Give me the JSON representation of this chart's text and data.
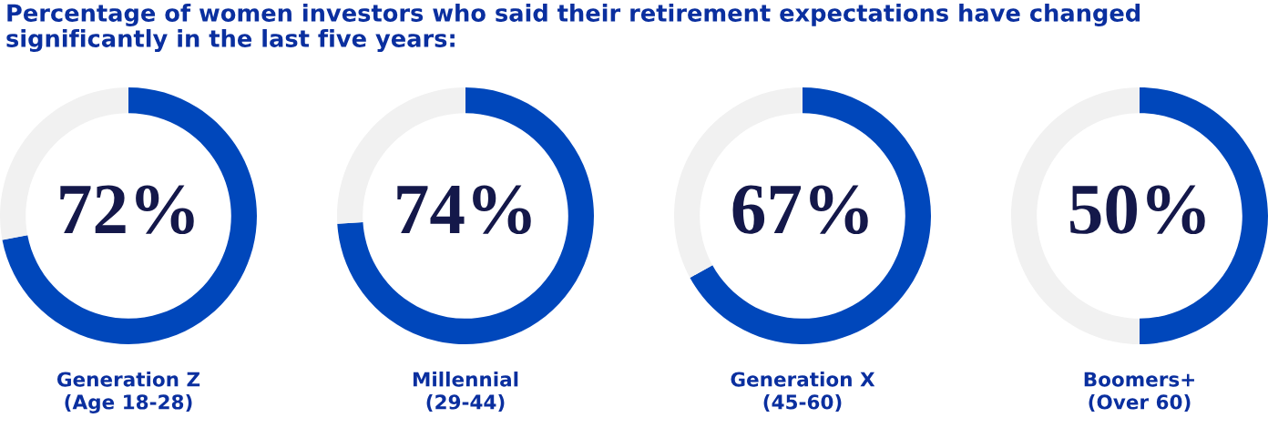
{
  "chart_data": [
    {
      "type": "donut",
      "title": "Percentage of women investors who said their retirement expectations have changed\nsignificantly in the last five years:",
      "categories": [
        null,
        null
      ],
      "values": [
        72,
        28
      ],
      "colors": [
        "#0047bb",
        "#f1f1f1"
      ],
      "value_labels": [
        "72%",
        null
      ],
      "xlabel": "Generation Z\n(Age 18-28)"
    },
    {
      "type": "donut",
      "categories": [
        null,
        null
      ],
      "values": [
        74,
        26
      ],
      "colors": [
        "#0047bb",
        "#f1f1f1"
      ],
      "value_labels": [
        "74%",
        null
      ],
      "xlabel": "Millennial\n(29-44)"
    },
    {
      "type": "donut",
      "categories": [
        null,
        null
      ],
      "values": [
        67,
        33
      ],
      "colors": [
        "#0047bb",
        "#f1f1f1"
      ],
      "value_labels": [
        "67%",
        null
      ],
      "xlabel": "Generation X\n(45-60)"
    },
    {
      "type": "donut",
      "categories": [
        null,
        null
      ],
      "values": [
        50,
        50
      ],
      "colors": [
        "#0047bb",
        "#f1f1f1"
      ],
      "value_labels": [
        "50%",
        null
      ],
      "xlabel": "Boomers+\n(Over 60)"
    }
  ]
}
